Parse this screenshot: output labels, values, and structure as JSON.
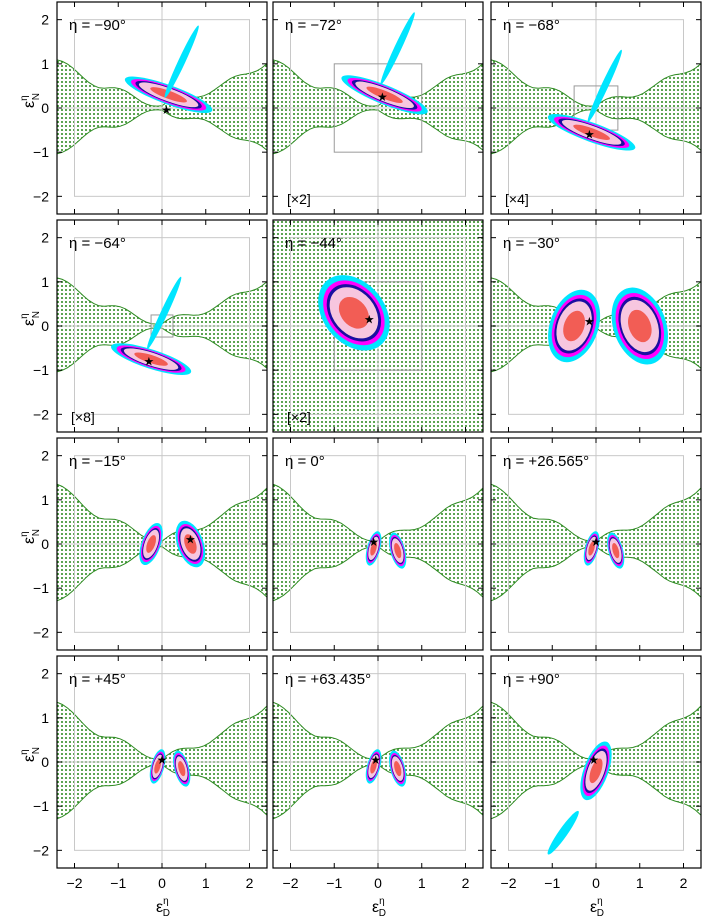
{
  "figure": {
    "xlabel": "ε",
    "xlabel_sup": "η",
    "xlabel_sub": "D",
    "ylabel": "ε",
    "ylabel_sup": "η",
    "ylabel_sub": "N",
    "xticks": [
      -2,
      -1,
      0,
      1,
      2
    ],
    "yticks": [
      2,
      1,
      0,
      -1,
      -2
    ],
    "xtick_labels": [
      "−2",
      "−1",
      "0",
      "1",
      "2"
    ],
    "ytick_labels": [
      "2",
      "1",
      "0",
      "−1",
      "−2"
    ]
  },
  "colors": {
    "background_region": "#2e8b22",
    "contour_outer": "#00e5ff",
    "contour_magenta": "#ff00ff",
    "contour_blue": "#1a10a0",
    "contour_pink": "#f7c6df",
    "contour_core": "#f25d55",
    "frame": "#000000",
    "guide": "#c8c8c8"
  },
  "chart_data": [
    {
      "type": "contour",
      "eta": "η = −90°",
      "angle_deg": -90,
      "best_fit": [
        0.1,
        -0.05
      ],
      "inset_scale": "",
      "xlim": [
        -2.4,
        2.4
      ],
      "ylim": [
        -2.4,
        2.4
      ]
    },
    {
      "type": "contour",
      "eta": "η = −72°",
      "angle_deg": -72,
      "best_fit": [
        0.1,
        0.25
      ],
      "inset_scale": "[×2]",
      "xlim": [
        -2.4,
        2.4
      ],
      "ylim": [
        -2.4,
        2.4
      ]
    },
    {
      "type": "contour",
      "eta": "η = −68°",
      "angle_deg": -68,
      "best_fit": [
        -0.15,
        -0.6
      ],
      "inset_scale": "[×4]",
      "xlim": [
        -2.4,
        2.4
      ],
      "ylim": [
        -2.4,
        2.4
      ]
    },
    {
      "type": "contour",
      "eta": "η = −64°",
      "angle_deg": -64,
      "best_fit": [
        -0.3,
        -0.8
      ],
      "inset_scale": "[×8]",
      "xlim": [
        -2.4,
        2.4
      ],
      "ylim": [
        -2.4,
        2.4
      ]
    },
    {
      "type": "contour",
      "eta": "η = −44°",
      "angle_deg": -44,
      "best_fit": [
        -0.2,
        0.15
      ],
      "inset_scale": "[×2]",
      "xlim": [
        -2.4,
        2.4
      ],
      "ylim": [
        -2.4,
        2.4
      ]
    },
    {
      "type": "contour",
      "eta": "η = −30°",
      "angle_deg": -30,
      "best_fit": [
        -0.15,
        0.1
      ],
      "inset_scale": "",
      "xlim": [
        -2.4,
        2.4
      ],
      "ylim": [
        -2.4,
        2.4
      ]
    },
    {
      "type": "contour",
      "eta": "η = −15°",
      "angle_deg": -15,
      "best_fit": [
        0.65,
        0.1
      ],
      "inset_scale": "",
      "xlim": [
        -2.4,
        2.4
      ],
      "ylim": [
        -2.4,
        2.4
      ]
    },
    {
      "type": "contour",
      "eta": "η = 0°",
      "angle_deg": 0,
      "best_fit": [
        -0.1,
        0.05
      ],
      "inset_scale": "",
      "xlim": [
        -2.4,
        2.4
      ],
      "ylim": [
        -2.4,
        2.4
      ]
    },
    {
      "type": "contour",
      "eta": "η = +26.565°",
      "angle_deg": 26.565,
      "best_fit": [
        0,
        0.05
      ],
      "inset_scale": "",
      "xlim": [
        -2.4,
        2.4
      ],
      "ylim": [
        -2.4,
        2.4
      ]
    },
    {
      "type": "contour",
      "eta": "η = +45°",
      "angle_deg": 45,
      "best_fit": [
        0,
        0.05
      ],
      "inset_scale": "",
      "xlim": [
        -2.4,
        2.4
      ],
      "ylim": [
        -2.4,
        2.4
      ]
    },
    {
      "type": "contour",
      "eta": "η = +63.435°",
      "angle_deg": 63.435,
      "best_fit": [
        -0.05,
        0.05
      ],
      "inset_scale": "",
      "xlim": [
        -2.4,
        2.4
      ],
      "ylim": [
        -2.4,
        2.4
      ]
    },
    {
      "type": "contour",
      "eta": "η = +90°",
      "angle_deg": 90,
      "best_fit": [
        -0.05,
        0.05
      ],
      "inset_scale": "",
      "xlim": [
        -2.4,
        2.4
      ],
      "ylim": [
        -2.4,
        2.4
      ]
    }
  ]
}
